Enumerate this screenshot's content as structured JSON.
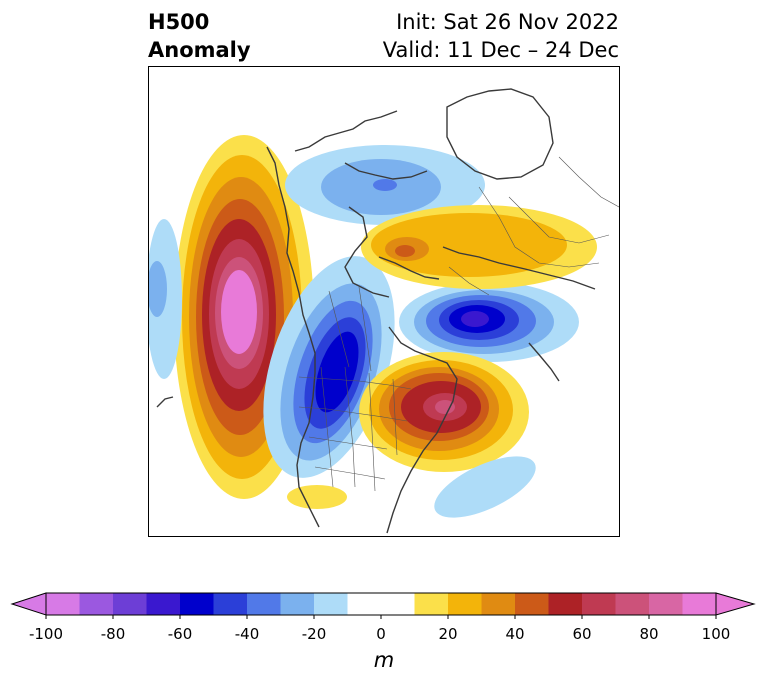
{
  "header": {
    "variable": "H500",
    "quantity": "Anomaly",
    "init": "Init: Sat 26 Nov 2022",
    "valid": "Valid: 11 Dec – 24 Dec"
  },
  "colorbar": {
    "units": "m",
    "ticks": [
      "-100",
      "-80",
      "-60",
      "-40",
      "-20",
      "0",
      "20",
      "40",
      "60",
      "80",
      "100"
    ],
    "range": [
      -100,
      100
    ],
    "step": 10,
    "colors": [
      "#d77ae6",
      "#9b58e0",
      "#6d3ed6",
      "#3a18cf",
      "#0000cc",
      "#2b3fd8",
      "#5179e8",
      "#7bb1ee",
      "#aedcf8",
      "#ffffff",
      "#ffffff",
      "#fbe04a",
      "#f3b40a",
      "#e08b12",
      "#cc5a18",
      "#ad2226",
      "#bf3a52",
      "#cc527a",
      "#d866a4",
      "#e87ad8"
    ],
    "extend": "both"
  },
  "map": {
    "field": "500 hPa geopotential height anomaly",
    "projection": "polar stereographic, North America centered",
    "boundaries": [
      "coastlines",
      "country borders",
      "US states",
      "Canadian provinces"
    ]
  }
}
